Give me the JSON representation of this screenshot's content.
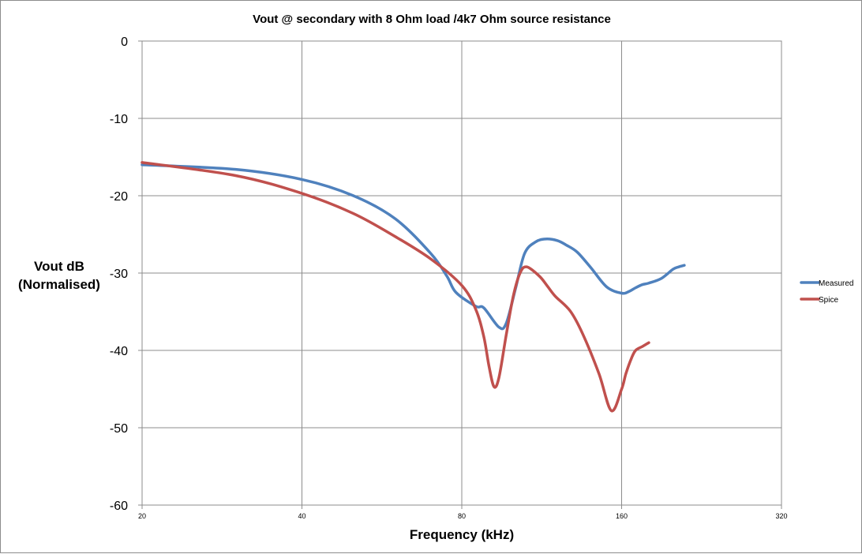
{
  "chart_data": {
    "type": "line",
    "title": "Vout @ secondary with 8 Ohm load /4k7 Ohm source resistance",
    "xlabel": "Frequency (kHz)",
    "ylabel_lines": [
      "Vout dB",
      "(Normalised)"
    ],
    "x_scale": "log2",
    "xlim": [
      20,
      320
    ],
    "ylim": [
      -60,
      0
    ],
    "x_ticks": [
      20,
      40,
      80,
      160,
      320
    ],
    "x_tick_labels": [
      "20",
      "40",
      "80",
      "160",
      "320"
    ],
    "y_ticks": [
      0,
      -10,
      -20,
      -30,
      -40,
      -50,
      -60
    ],
    "y_tick_labels": [
      "0",
      "-10",
      "-20",
      "-30",
      "-40",
      "-50",
      "-60"
    ],
    "grid": true,
    "legend_position": "right",
    "series": [
      {
        "name": "Measured",
        "color": "#4f81bd",
        "x": [
          20,
          30,
          40,
          50,
          60,
          70,
          75,
          78,
          85,
          88,
          94,
          97,
          101,
          105,
          110,
          115,
          121,
          126,
          132,
          140,
          150,
          160,
          165,
          170,
          175,
          180,
          190,
          200,
          205,
          210
        ],
        "y": [
          -16,
          -16.6,
          -17.9,
          -20,
          -23,
          -27.5,
          -30.4,
          -32.5,
          -34.3,
          -34.5,
          -37,
          -36.5,
          -32,
          -27.5,
          -26,
          -25.6,
          -25.8,
          -26.4,
          -27.3,
          -29.3,
          -31.8,
          -32.6,
          -32.4,
          -31.9,
          -31.5,
          -31.3,
          -30.7,
          -29.5,
          -29.2,
          -29
        ]
      },
      {
        "name": "Spice",
        "color": "#c0504d",
        "x": [
          20,
          30,
          40,
          50,
          60,
          70,
          80,
          85,
          88,
          90,
          92,
          94,
          97,
          100,
          103,
          106,
          112,
          116,
          120,
          128,
          135,
          145,
          153,
          160,
          163,
          167,
          170,
          175,
          178,
          180
        ],
        "y": [
          -15.7,
          -17.4,
          -19.7,
          -22.3,
          -25.3,
          -28.2,
          -31.6,
          -34.7,
          -38.2,
          -42,
          -44.7,
          -43.5,
          -38,
          -33,
          -30,
          -29.2,
          -30.4,
          -31.7,
          -33,
          -34.9,
          -37.8,
          -43,
          -47.8,
          -45,
          -43,
          -41,
          -40,
          -39.5,
          -39.2,
          -39
        ]
      }
    ]
  }
}
